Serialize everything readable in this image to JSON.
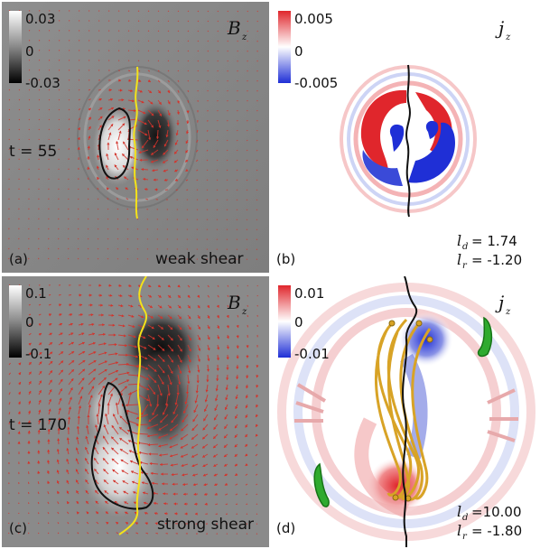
{
  "panels": {
    "a": {
      "tag": "(a)",
      "field": "B",
      "field_sub": "z",
      "colorbar": [
        "0.03",
        "0",
        "-0.03"
      ],
      "time": "t = 55",
      "caption": "weak shear"
    },
    "b": {
      "tag": "(b)",
      "field": "j",
      "field_sub": "z",
      "colorbar": [
        "0.005",
        "0",
        "-0.005"
      ],
      "ld_label": "l",
      "ld_sub": "d",
      "ld_value": "=  1.74",
      "lr_label": "l",
      "lr_sub": "r",
      "lr_value": "= -1.20"
    },
    "c": {
      "tag": "(c)",
      "field": "B",
      "field_sub": "z",
      "colorbar": [
        "0.1",
        "0",
        "-0.1"
      ],
      "time": "t = 170",
      "caption": "strong shear"
    },
    "d": {
      "tag": "(d)",
      "field": "j",
      "field_sub": "z",
      "colorbar": [
        "0.01",
        "0",
        "-0.01"
      ],
      "ld_label": "l",
      "ld_sub": "d",
      "ld_value": "=10.00",
      "lr_label": "l",
      "lr_sub": "r",
      "lr_value": "= -1.80"
    }
  },
  "colors": {
    "arrow": "#d2342c",
    "pil": "#f4e21a",
    "contour": "#111111",
    "fieldline": "#d8a326",
    "footpoint": "#2faa2f",
    "red": "#e0262c",
    "blue": "#1f2fd6"
  }
}
